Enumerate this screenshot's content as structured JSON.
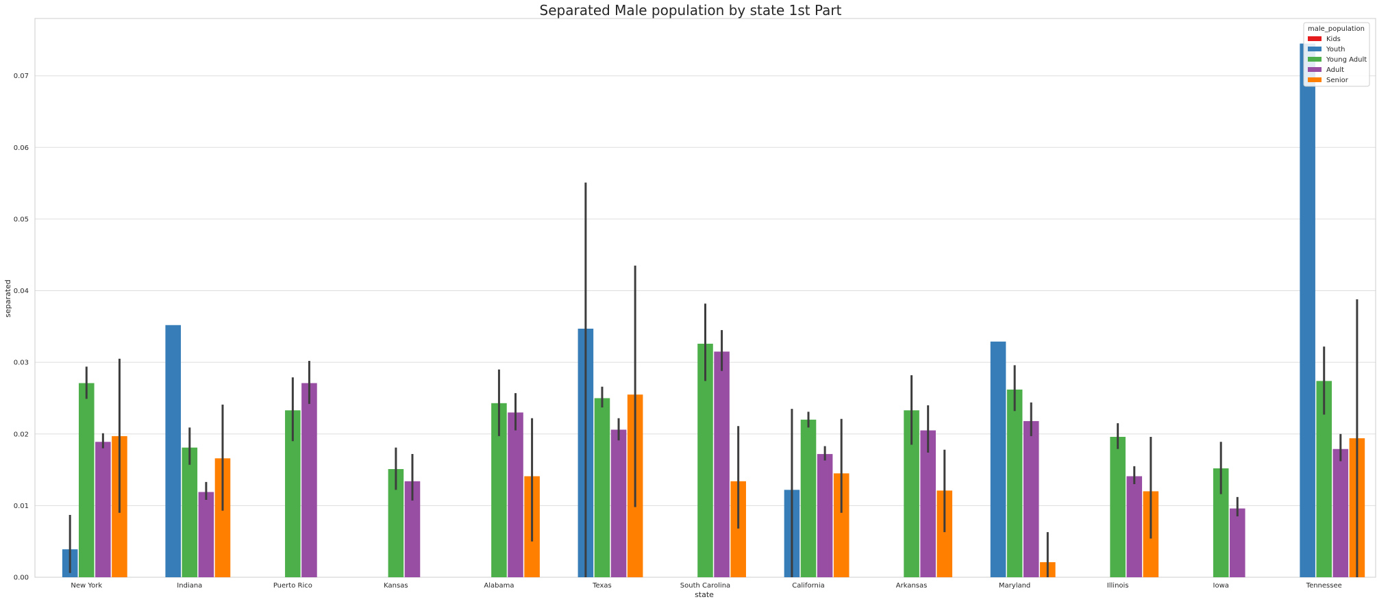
{
  "chart_data": {
    "type": "bar",
    "title": "Separated Male population by state 1st  Part",
    "xlabel": "state",
    "ylabel": "separated",
    "ylim": [
      0,
      0.078
    ],
    "yticks": [
      "0.00",
      "0.01",
      "0.02",
      "0.03",
      "0.04",
      "0.05",
      "0.06",
      "0.07"
    ],
    "grid": true,
    "legend": {
      "title": "male_population",
      "placement": "top-right"
    },
    "categories": [
      "New York",
      "Indiana",
      "Puerto Rico",
      "Kansas",
      "Alabama",
      "Texas",
      "South Carolina",
      "California",
      "Arkansas",
      "Maryland",
      "Illinois",
      "Iowa",
      "Tennessee"
    ],
    "series": [
      {
        "name": "Kids",
        "color": "#e41a1c",
        "values": [
          null,
          null,
          null,
          null,
          null,
          null,
          null,
          null,
          null,
          null,
          null,
          null,
          null
        ],
        "err_low": [
          null,
          null,
          null,
          null,
          null,
          null,
          null,
          null,
          null,
          null,
          null,
          null,
          null
        ],
        "err_high": [
          null,
          null,
          null,
          null,
          null,
          null,
          null,
          null,
          null,
          null,
          null,
          null,
          null
        ]
      },
      {
        "name": "Youth",
        "color": "#377eb8",
        "values": [
          0.0039,
          0.0352,
          null,
          null,
          null,
          0.0347,
          null,
          0.0122,
          null,
          0.0329,
          null,
          null,
          0.0745
        ],
        "err_low": [
          0.0006,
          null,
          null,
          null,
          null,
          0.0,
          null,
          0.0,
          null,
          null,
          null,
          null,
          null
        ],
        "err_high": [
          0.0087,
          null,
          null,
          null,
          null,
          0.0551,
          null,
          0.0235,
          null,
          null,
          null,
          null,
          null
        ]
      },
      {
        "name": "Young Adult",
        "color": "#4daf4a",
        "values": [
          0.0271,
          0.0181,
          0.0233,
          0.0151,
          0.0243,
          0.025,
          0.0326,
          0.022,
          0.0233,
          0.0262,
          0.0196,
          0.0152,
          0.0274
        ],
        "err_low": [
          0.0249,
          0.0157,
          0.019,
          0.0122,
          0.0197,
          0.0237,
          0.0274,
          0.0209,
          0.0185,
          0.0232,
          0.0179,
          0.0116,
          0.0227
        ],
        "err_high": [
          0.0294,
          0.0209,
          0.0279,
          0.0181,
          0.029,
          0.0266,
          0.0382,
          0.0231,
          0.0282,
          0.0296,
          0.0215,
          0.0189,
          0.0322
        ]
      },
      {
        "name": "Adult",
        "color": "#984ea3",
        "values": [
          0.0189,
          0.0119,
          0.0271,
          0.0134,
          0.023,
          0.0206,
          0.0315,
          0.0172,
          0.0205,
          0.0218,
          0.0141,
          0.0096,
          0.0179
        ],
        "err_low": [
          0.018,
          0.0108,
          0.0242,
          0.0107,
          0.0205,
          0.0191,
          0.0288,
          0.0163,
          0.0174,
          0.0197,
          0.013,
          0.0085,
          0.0162
        ],
        "err_high": [
          0.0201,
          0.0133,
          0.0302,
          0.0172,
          0.0257,
          0.0222,
          0.0345,
          0.0183,
          0.024,
          0.0244,
          0.0155,
          0.0112,
          0.02
        ]
      },
      {
        "name": "Senior",
        "color": "#ff7f00",
        "values": [
          0.0197,
          0.0166,
          null,
          null,
          0.0141,
          0.0255,
          0.0134,
          0.0145,
          0.0121,
          0.0021,
          0.012,
          null,
          0.0194
        ],
        "err_low": [
          0.009,
          0.0093,
          null,
          null,
          0.005,
          0.0098,
          0.0068,
          0.009,
          0.0063,
          0.0,
          0.0054,
          null,
          0.0
        ],
        "err_high": [
          0.0305,
          0.0241,
          null,
          null,
          0.0222,
          0.0435,
          0.0211,
          0.0221,
          0.0178,
          0.0063,
          0.0196,
          null,
          0.0388
        ]
      }
    ]
  }
}
